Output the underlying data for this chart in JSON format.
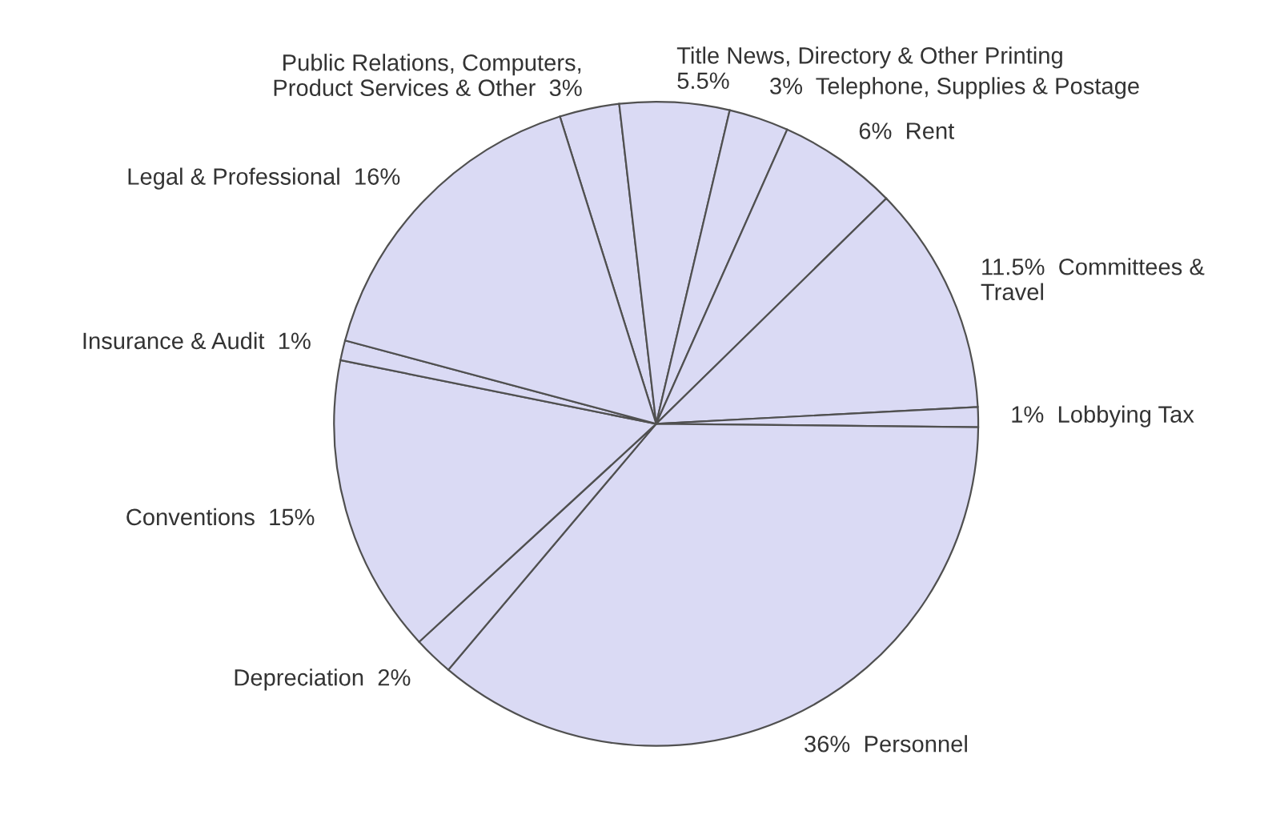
{
  "chart_data": {
    "type": "pie",
    "categories": [
      "Public Relations, Computers,\nProduct Services & Other",
      "Title News, Directory & Other Printing",
      "Telephone, Supplies & Postage",
      "Rent",
      "Committees &\nTravel",
      "Lobbying Tax",
      "Personnel",
      "Depreciation",
      "Conventions",
      "Insurance & Audit",
      "Legal & Professional"
    ],
    "values": [
      3,
      5.5,
      3,
      6,
      11.5,
      1,
      36,
      2,
      15,
      1,
      16
    ],
    "value_labels": [
      "3%",
      "5.5%",
      "3%",
      "6%",
      "11.5%",
      "1%",
      "36%",
      "2%",
      "15%",
      "1%",
      "16%"
    ],
    "colors": [
      "#dadaf4",
      "#dadaf4",
      "#dadaf4",
      "#dadaf4",
      "#dadaf4",
      "#dadaf4",
      "#dadaf4",
      "#dadaf4",
      "#dadaf4",
      "#dadaf4",
      "#dadaf4"
    ],
    "legend": false
  }
}
